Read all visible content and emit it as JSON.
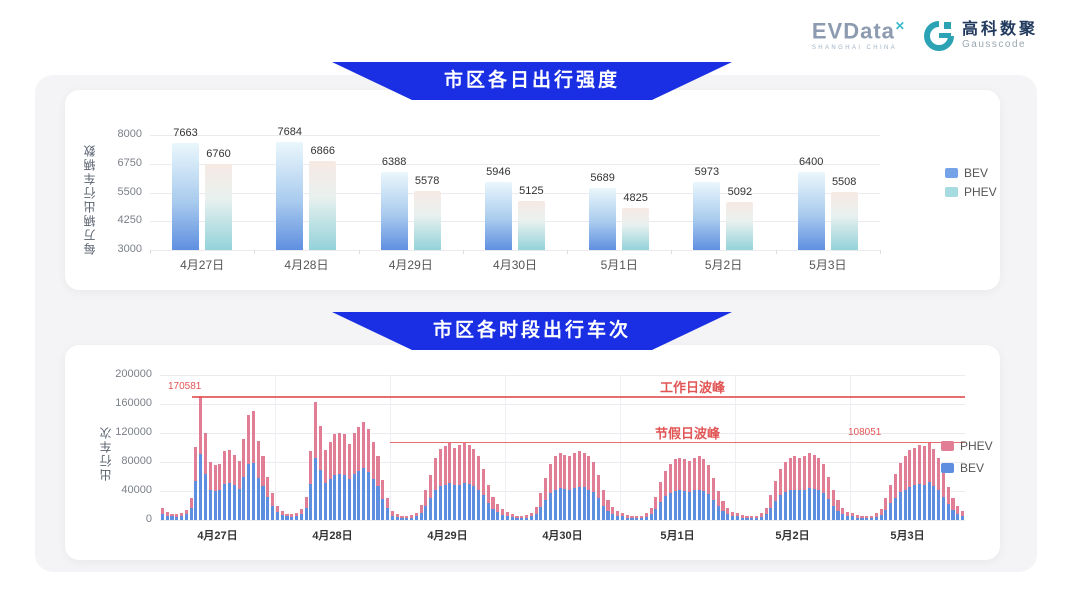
{
  "header": {
    "evdata": {
      "text": "EVData",
      "sup": "✕",
      "sub": "SHANGHAI CHINA"
    },
    "gausscode": {
      "cn": "高科数聚",
      "en": "Gausscode"
    }
  },
  "colors": {
    "accent_blue": "#1A2FE4",
    "bev_blue": "#5E8EDF",
    "phev_pink": "#E17E95",
    "bev_gradient_top": "#EAF7FC",
    "bev_gradient_bottom": "#5F8FE0",
    "phev_gradient_top": "#F7E9E4",
    "phev_gradient_bottom": "#93D2DA",
    "legend_bev": "#76A3E8",
    "legend_phev": "#A6DBE0",
    "annotation_red": "#E25555"
  },
  "chart_data": [
    {
      "type": "bar",
      "title": "市区各日出行强度",
      "y_label": "每万辆出行车辆数",
      "y_min": 3000,
      "y_max": 8000,
      "y_ticks": [
        3000,
        4250,
        5500,
        6750,
        8000
      ],
      "grid": true,
      "legend_position": "right",
      "categories": [
        "4月27日",
        "4月28日",
        "4月29日",
        "4月30日",
        "5月1日",
        "5月2日",
        "5月3日"
      ],
      "series": [
        {
          "name": "BEV",
          "values": [
            7663,
            7684,
            6388,
            5946,
            5689,
            5973,
            6400
          ]
        },
        {
          "name": "PHEV",
          "values": [
            6760,
            6866,
            5578,
            5125,
            4825,
            5092,
            5508
          ]
        }
      ],
      "legend": [
        "BEV",
        "PHEV"
      ]
    },
    {
      "type": "bar",
      "stacked": true,
      "title": "市区各时段出行车次",
      "y_label": "出行车次",
      "y_max": 200000,
      "y_ticks": [
        0,
        40000,
        80000,
        120000,
        160000,
        200000
      ],
      "grid": true,
      "legend_position": "right",
      "legend": [
        "PHEV",
        "BEV"
      ],
      "annotations": {
        "workday_peak": {
          "label": "工作日波峰",
          "value": 170581,
          "value_label": "170581"
        },
        "holiday_peak": {
          "label": "节假日波峰",
          "value": 108051,
          "value_label": "108051"
        }
      },
      "days": [
        {
          "label": "4月27日",
          "bev": [
            9000,
            6000,
            5000,
            4000,
            5000,
            8000,
            16000,
            54000,
            91000,
            64000,
            42000,
            40000,
            41000,
            50000,
            51000,
            48000,
            43000,
            59000,
            77000,
            79000,
            58000,
            47000,
            32000,
            20000
          ],
          "phev": [
            7000,
            5000,
            4000,
            4000,
            5000,
            6000,
            14000,
            47000,
            79581,
            56000,
            38000,
            36000,
            37000,
            45000,
            45000,
            42000,
            39000,
            53000,
            68000,
            71000,
            51000,
            41000,
            28000,
            17000
          ]
        },
        {
          "label": "4月28日",
          "bev": [
            11000,
            7000,
            5000,
            4000,
            5000,
            8000,
            17000,
            50000,
            86000,
            69000,
            51000,
            57000,
            62000,
            64000,
            62000,
            56000,
            64000,
            68000,
            72000,
            66000,
            57000,
            47000,
            29000,
            16000
          ],
          "phev": [
            9000,
            6000,
            4000,
            4000,
            5000,
            7000,
            15000,
            45000,
            77000,
            61000,
            45000,
            51000,
            56000,
            56000,
            56000,
            49000,
            56000,
            60000,
            63000,
            59000,
            51000,
            41000,
            26000,
            14000
          ]
        },
        {
          "label": "4月29日",
          "bev": [
            6000,
            4000,
            3000,
            2500,
            3500,
            5000,
            10000,
            20000,
            30000,
            41000,
            47000,
            49000,
            51000,
            48000,
            49000,
            51000,
            50000,
            47000,
            42000,
            34000,
            23000,
            15000,
            11000,
            7000
          ],
          "phev": [
            6000,
            4000,
            3000,
            2500,
            3500,
            5000,
            10000,
            22000,
            32000,
            44000,
            51000,
            53000,
            55000,
            52000,
            54000,
            55000,
            54000,
            51000,
            46000,
            36000,
            25000,
            17000,
            11000,
            8000
          ]
        },
        {
          "label": "4月30日",
          "bev": [
            5500,
            4000,
            3000,
            2500,
            3500,
            5000,
            9000,
            18000,
            28000,
            37000,
            42000,
            44000,
            43000,
            42000,
            44000,
            46000,
            45000,
            42000,
            38000,
            30000,
            20000,
            13000,
            9000,
            6000
          ],
          "phev": [
            5500,
            4000,
            3000,
            2500,
            3500,
            5000,
            9000,
            20000,
            30000,
            41000,
            46000,
            48000,
            47000,
            46000,
            48000,
            49000,
            48000,
            46000,
            42000,
            32000,
            22000,
            15000,
            9000,
            6000
          ]
        },
        {
          "label": "5月1日",
          "bev": [
            5000,
            3500,
            2500,
            2500,
            3000,
            4500,
            8000,
            15000,
            25000,
            33000,
            37000,
            40000,
            41000,
            40000,
            39000,
            41000,
            42000,
            40000,
            36000,
            28000,
            19000,
            12000,
            8000,
            5000
          ],
          "phev": [
            5000,
            3500,
            2500,
            2500,
            3000,
            4500,
            8000,
            17000,
            27000,
            35000,
            41000,
            44000,
            45000,
            44000,
            43000,
            45000,
            46000,
            44000,
            40000,
            30000,
            21000,
            14000,
            9000,
            6000
          ]
        },
        {
          "label": "5月2日",
          "bev": [
            5000,
            3500,
            2500,
            2500,
            3000,
            4500,
            8000,
            16000,
            26000,
            34000,
            38000,
            41000,
            42000,
            41000,
            42000,
            44000,
            43000,
            41000,
            37000,
            29000,
            20000,
            13000,
            8000,
            5000
          ],
          "phev": [
            5000,
            3500,
            2500,
            2500,
            3000,
            4500,
            8000,
            18000,
            28000,
            36000,
            42000,
            45000,
            46000,
            45000,
            46000,
            48000,
            47000,
            45000,
            41000,
            31000,
            22000,
            14000,
            9000,
            6000
          ]
        },
        {
          "label": "5月3日",
          "bev": [
            5000,
            3500,
            2500,
            2500,
            3000,
            4500,
            7500,
            14000,
            23000,
            31000,
            38000,
            42000,
            46000,
            48000,
            50000,
            49000,
            52000,
            47000,
            41000,
            32000,
            22000,
            14000,
            9000,
            6000
          ],
          "phev": [
            5000,
            3500,
            2500,
            2500,
            3000,
            4500,
            7500,
            16000,
            25000,
            33000,
            40000,
            46000,
            50000,
            52000,
            54000,
            53000,
            56051,
            51000,
            45000,
            34000,
            24000,
            16000,
            10000,
            6000
          ]
        }
      ]
    }
  ]
}
